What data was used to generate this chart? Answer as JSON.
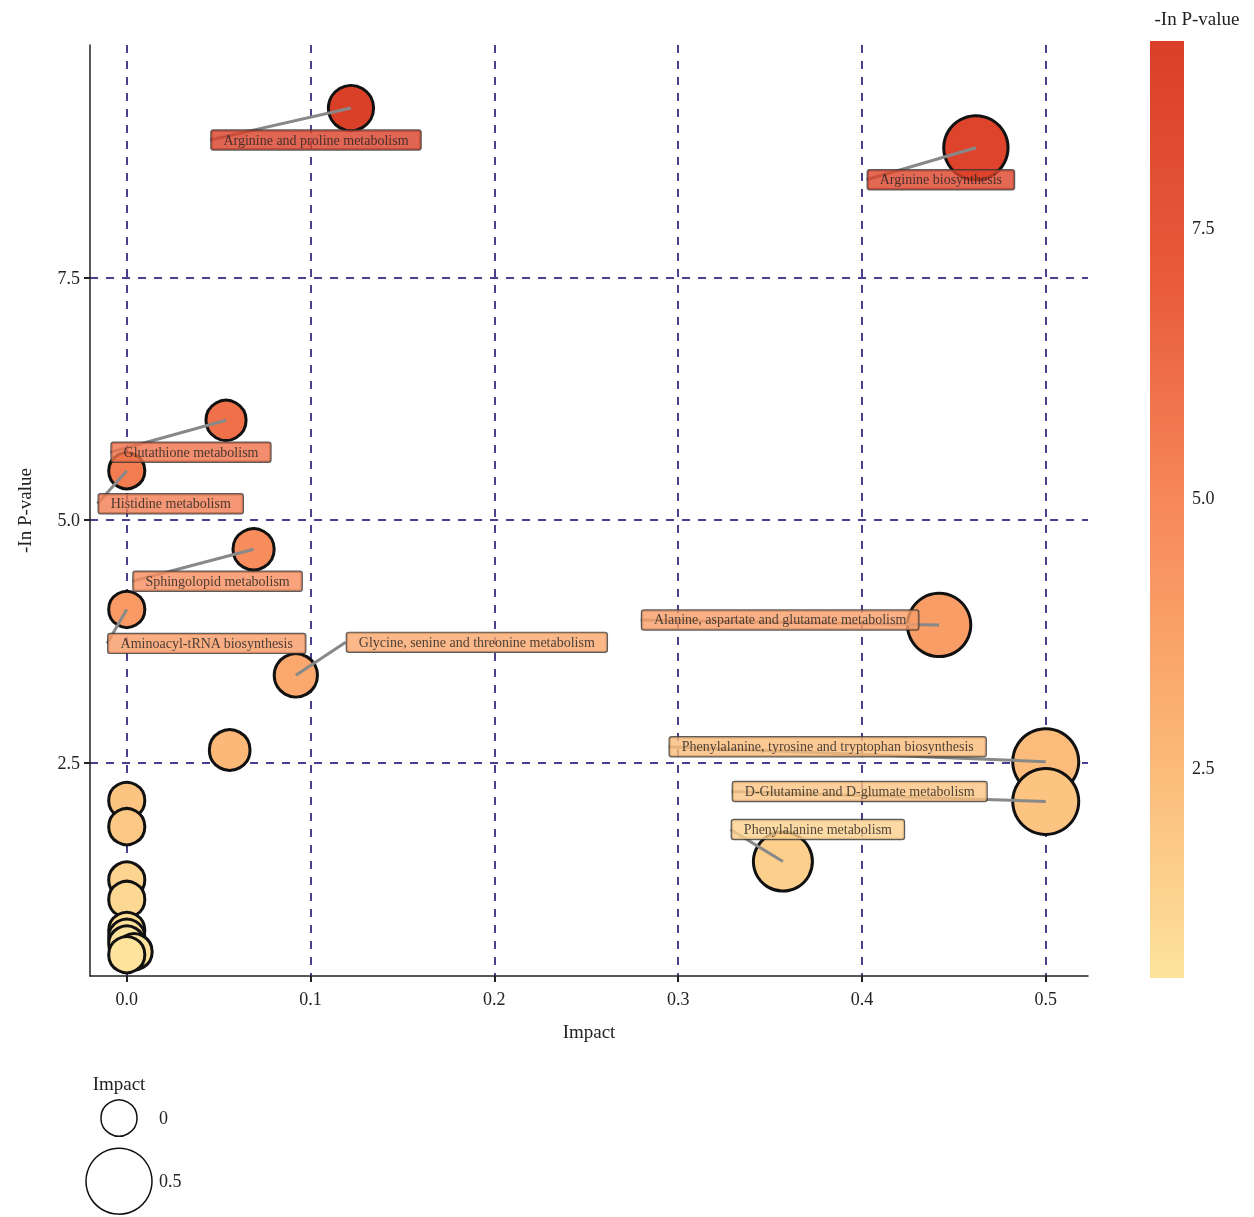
{
  "chart_data": {
    "type": "bubble",
    "xlabel": "Impact",
    "ylabel": "-In P-value",
    "clabel": "-In P-value",
    "legend_title": "Impact",
    "x": [
      0.122,
      0.462,
      0.054,
      0,
      0.069,
      0,
      0.442,
      0.092,
      0.056,
      0.5,
      0.5,
      0.357,
      0,
      0,
      0,
      0,
      0,
      0,
      0,
      0.004,
      0
    ],
    "values": [
      9.25,
      8.84,
      6.03,
      5.51,
      4.7,
      4.08,
      3.92,
      3.4,
      2.63,
      2.51,
      2.1,
      1.48,
      2.11,
      1.84,
      1.29,
      1.09,
      0.77,
      0.7,
      0.63,
      0.55,
      0.52
    ],
    "cvalues": [
      9.25,
      8.84,
      6.03,
      5.51,
      4.7,
      4.08,
      3.92,
      3.4,
      2.63,
      2.51,
      2.1,
      1.48,
      2.11,
      1.84,
      1.29,
      1.09,
      0.77,
      0.7,
      0.63,
      0.55,
      0.52
    ],
    "sizes": [
      0.47,
      0.95,
      0.37,
      0.3,
      0.39,
      0.3,
      0.92,
      0.43,
      0.38,
      1,
      1,
      0.8,
      0.3,
      0.3,
      0.3,
      0.3,
      0.3,
      0.3,
      0.3,
      0.3,
      0.3
    ],
    "size_legend": [
      {
        "value": 0.3,
        "label": "0"
      },
      {
        "value": 1,
        "label": "0.5"
      }
    ],
    "clim": [
      0.56,
      9.23
    ],
    "cticks": [
      2.5,
      {
        "value": 5,
        "label": "5.0"
      },
      7.5
    ],
    "xlim": [
      -0.02,
      0.523
    ],
    "xticks": [
      {
        "value": 0,
        "label": "0.0"
      },
      0.1,
      0.2,
      0.3,
      0.4,
      0.5
    ],
    "ylim": [
      0.3,
      9.9
    ],
    "yticks": [
      2.5,
      {
        "value": 5,
        "label": "5.0"
      },
      7.5
    ],
    "grid": true,
    "marker": "circle",
    "annotations": [
      {
        "text": "Arginine and proline metabolism",
        "x": 0.122,
        "y": 9.25
      },
      {
        "text": "Arginine biosynthesis",
        "x": 0.462,
        "y": 8.84
      },
      {
        "text": "Glutathione metabolism",
        "x": 0.054,
        "y": 6.03
      },
      {
        "text": "Histidine metabolism",
        "x": 0,
        "y": 5.51
      },
      {
        "text": "Sphingolopid metabolism",
        "x": 0.069,
        "y": 4.7
      },
      {
        "text": "Aminoacyl-tRNA biosynthesis",
        "x": 0,
        "y": 4.08
      },
      {
        "text": "Alanine, aspartate and glutamate metabolism",
        "x": 0.442,
        "y": 3.92
      },
      {
        "text": "Glycine, senine and threonine metabolism",
        "x": 0.092,
        "y": 3.4
      },
      {
        "text": "Phenylalanine, tyrosine and tryptophan biosynthesis",
        "x": 0.5,
        "y": 2.51
      },
      {
        "text": "D-Glutamine and D-glumate metabolism",
        "x": 0.5,
        "y": 2.1
      },
      {
        "text": "Phenylalanine metabolism",
        "x": 0.357,
        "y": 1.48
      }
    ]
  }
}
